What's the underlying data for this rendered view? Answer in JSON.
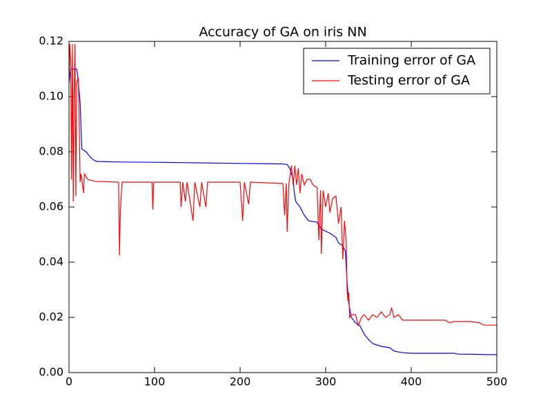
{
  "chart_data": {
    "type": "line",
    "title": "Accuracy of GA on iris NN",
    "xlim": [
      0,
      500
    ],
    "ylim": [
      0,
      0.12
    ],
    "xticks": [
      0,
      100,
      200,
      300,
      400,
      500
    ],
    "yticks": [
      {
        "value": 0,
        "label": "0.00"
      },
      {
        "value": 0.02,
        "label": "0.02"
      },
      {
        "value": 0.04,
        "label": "0.04"
      },
      {
        "value": 0.06,
        "label": "0.06"
      },
      {
        "value": 0.08,
        "label": "0.08"
      },
      {
        "value": 0.1,
        "label": "0.10"
      },
      {
        "value": 0.12,
        "label": "0.12"
      }
    ],
    "legend": "upper right",
    "series": [
      {
        "name": "Training error of GA",
        "color": "#0000ff",
        "x": [
          0,
          2,
          9,
          10,
          13,
          15,
          20,
          25,
          30,
          33,
          60,
          100,
          150,
          200,
          250,
          255,
          258,
          262,
          263,
          265,
          270,
          275,
          280,
          290,
          295,
          305,
          312,
          315,
          320,
          323,
          325,
          327,
          330,
          335,
          340,
          345,
          350,
          355,
          365,
          375,
          380,
          390,
          400,
          450,
          455,
          480,
          490,
          500
        ],
        "values": [
          0.105,
          0.11,
          0.11,
          0.108,
          0.098,
          0.081,
          0.08,
          0.078,
          0.0768,
          0.0765,
          0.0763,
          0.0762,
          0.076,
          0.0758,
          0.0756,
          0.0754,
          0.074,
          0.07,
          0.066,
          0.062,
          0.06,
          0.057,
          0.055,
          0.0545,
          0.052,
          0.0505,
          0.049,
          0.047,
          0.046,
          0.044,
          0.033,
          0.025,
          0.02,
          0.018,
          0.017,
          0.014,
          0.012,
          0.0105,
          0.0095,
          0.009,
          0.0078,
          0.0072,
          0.007,
          0.007,
          0.0067,
          0.0066,
          0.0065,
          0.0065
        ]
      },
      {
        "name": "Testing error of GA",
        "color": "#ff0000",
        "x": [
          0,
          1,
          2,
          3,
          4,
          5,
          6,
          7,
          8,
          9,
          10,
          11,
          12,
          13,
          14,
          15,
          17,
          18,
          22,
          30,
          58,
          59,
          60,
          62,
          97,
          98,
          99,
          130,
          131,
          133,
          136,
          138,
          145,
          147,
          153,
          155,
          160,
          162,
          200,
          203,
          205,
          210,
          212,
          250,
          252,
          254,
          255,
          257,
          260,
          262,
          264,
          266,
          268,
          270,
          272,
          275,
          278,
          282,
          285,
          290,
          292,
          294,
          295,
          297,
          300,
          303,
          305,
          308,
          312,
          315,
          318,
          320,
          322,
          324,
          325,
          326,
          327,
          328,
          330,
          335,
          338,
          342,
          345,
          350,
          355,
          360,
          365,
          370,
          375,
          377,
          380,
          385,
          390,
          400,
          440,
          445,
          450,
          470,
          480,
          485,
          500
        ],
        "values": [
          0.105,
          0.119,
          0.112,
          0.07,
          0.119,
          0.062,
          0.1,
          0.119,
          0.064,
          0.105,
          0.106,
          0.107,
          0.09,
          0.069,
          0.072,
          0.07,
          0.065,
          0.072,
          0.07,
          0.0693,
          0.069,
          0.0425,
          0.058,
          0.069,
          0.069,
          0.059,
          0.069,
          0.069,
          0.06,
          0.069,
          0.062,
          0.069,
          0.055,
          0.069,
          0.06,
          0.069,
          0.06,
          0.069,
          0.069,
          0.055,
          0.069,
          0.061,
          0.069,
          0.0685,
          0.057,
          0.0685,
          0.051,
          0.0685,
          0.075,
          0.068,
          0.075,
          0.068,
          0.074,
          0.065,
          0.072,
          0.068,
          0.07,
          0.07,
          0.068,
          0.067,
          0.048,
          0.066,
          0.043,
          0.066,
          0.06,
          0.065,
          0.058,
          0.063,
          0.064,
          0.054,
          0.06,
          0.041,
          0.055,
          0.048,
          0.03,
          0.026,
          0.029,
          0.02,
          0.021,
          0.021,
          0.017,
          0.02,
          0.021,
          0.019,
          0.021,
          0.02,
          0.022,
          0.02,
          0.021,
          0.0235,
          0.02,
          0.021,
          0.019,
          0.019,
          0.019,
          0.018,
          0.0185,
          0.0185,
          0.018,
          0.0172,
          0.0172
        ]
      }
    ]
  }
}
